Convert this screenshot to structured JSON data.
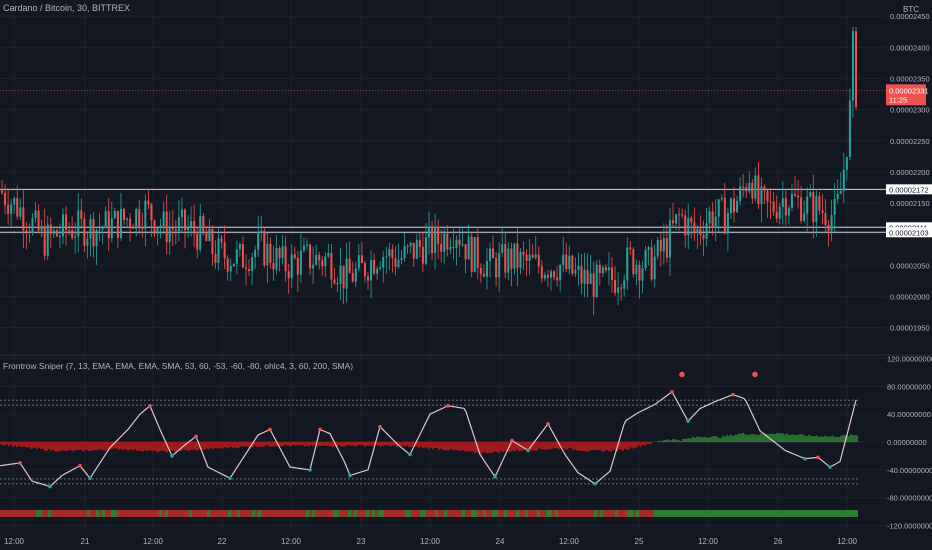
{
  "header": {
    "title": "Cardano / Bitcoin, 30, BITTREX",
    "currency": "BTC"
  },
  "indicator": {
    "title": "Frontrow Sniper (7, 13, EMA, EMA, EMA, SMA, 53, 60, -53, -60, -80, ohlc4, 3, 60, 200, SMA)"
  },
  "colors": {
    "background": "#131722",
    "up": "#26a69a",
    "down": "#ef5350",
    "grid": "#1e222d",
    "text": "#b2b5be",
    "oscillator_line": "#e0c5cf",
    "histogram_positive": "#2e7d32",
    "histogram_negative": "#b71c1c"
  },
  "chart_data": [
    {
      "type": "candlestick",
      "pane": "price",
      "y_ticks": [
        "0.00002450",
        "0.00002400",
        "0.00002350",
        "0.00002300",
        "0.00002250",
        "0.00002200",
        "0.00002150",
        "0.00002100",
        "0.00002050",
        "0.00002000",
        "0.00001950"
      ],
      "ylim": [
        1.93e-05,
        2.46e-05
      ],
      "current_price": {
        "value": "0.00002331",
        "countdown": "11:25"
      },
      "horizontal_lines": [
        {
          "label": "0.00002172",
          "value": 2.172e-05
        },
        {
          "label": "0.00002111",
          "value": 2.111e-05
        },
        {
          "label": "0.00002103",
          "value": 2.103e-05
        }
      ],
      "price_path": [
        [
          0,
          2.17e-05
        ],
        [
          20,
          2.14e-05
        ],
        [
          45,
          2.09e-05
        ],
        [
          70,
          2.11e-05
        ],
        [
          100,
          2.11e-05
        ],
        [
          120,
          2.12e-05
        ],
        [
          145,
          2.14e-05
        ],
        [
          165,
          2.11e-05
        ],
        [
          185,
          2.11e-05
        ],
        [
          200,
          2.1e-05
        ],
        [
          215,
          2.07e-05
        ],
        [
          240,
          2.06e-05
        ],
        [
          260,
          2.08e-05
        ],
        [
          285,
          2.05e-05
        ],
        [
          305,
          2.06e-05
        ],
        [
          330,
          2.06e-05
        ],
        [
          345,
          2.03e-05
        ],
        [
          360,
          2.04e-05
        ],
        [
          380,
          2.07e-05
        ],
        [
          400,
          2.06e-05
        ],
        [
          420,
          2.08e-05
        ],
        [
          440,
          2.09e-05
        ],
        [
          455,
          2.11e-05
        ],
        [
          470,
          2.07e-05
        ],
        [
          490,
          2.05e-05
        ],
        [
          510,
          2.06e-05
        ],
        [
          535,
          2.05e-05
        ],
        [
          560,
          2.05e-05
        ],
        [
          580,
          2.03e-05
        ],
        [
          600,
          2.02e-05
        ],
        [
          615,
          2.03e-05
        ],
        [
          630,
          2.06e-05
        ],
        [
          650,
          2.05e-05
        ],
        [
          665,
          2.08e-05
        ],
        [
          680,
          2.13e-05
        ],
        [
          695,
          2.1e-05
        ],
        [
          710,
          2.13e-05
        ],
        [
          725,
          2.13e-05
        ],
        [
          740,
          2.16e-05
        ],
        [
          750,
          2.2e-05
        ],
        [
          758,
          2.15e-05
        ],
        [
          770,
          2.14e-05
        ],
        [
          785,
          2.16e-05
        ],
        [
          800,
          2.15e-05
        ],
        [
          820,
          2.14e-05
        ],
        [
          835,
          2.13e-05
        ],
        [
          840,
          2.16e-05
        ],
        [
          845,
          2.22e-05
        ],
        [
          850,
          2.3e-05
        ],
        [
          853,
          2.4e-05
        ],
        [
          856,
          2.33e-05
        ]
      ]
    },
    {
      "type": "line",
      "pane": "oscillator",
      "y_ticks": [
        "120.00000000",
        "80.00000000",
        "40.00000000",
        "0.00000000",
        "-40.00000000",
        "-80.00000000",
        "-120.00000000"
      ],
      "ylim": [
        -122,
        122
      ],
      "levels": [
        60,
        53,
        -53,
        -60
      ],
      "histogram_path": [
        [
          0,
          -3
        ],
        [
          30,
          -9
        ],
        [
          60,
          -13
        ],
        [
          90,
          -12
        ],
        [
          120,
          -10
        ],
        [
          160,
          -14
        ],
        [
          200,
          -11
        ],
        [
          240,
          -7
        ],
        [
          280,
          -5
        ],
        [
          320,
          -6
        ],
        [
          360,
          -5
        ],
        [
          400,
          -6
        ],
        [
          440,
          -10
        ],
        [
          480,
          -16
        ],
        [
          520,
          -12
        ],
        [
          560,
          -9
        ],
        [
          590,
          -13
        ],
        [
          620,
          -12
        ],
        [
          650,
          -2
        ],
        [
          665,
          4
        ],
        [
          680,
          3
        ],
        [
          700,
          8
        ],
        [
          720,
          7
        ],
        [
          740,
          12
        ],
        [
          760,
          11
        ],
        [
          775,
          13
        ],
        [
          790,
          11
        ],
        [
          810,
          9
        ],
        [
          830,
          8
        ],
        [
          856,
          10
        ]
      ],
      "oscillator_path": [
        [
          0,
          -34
        ],
        [
          20,
          -30
        ],
        [
          32,
          -56
        ],
        [
          50,
          -64
        ],
        [
          62,
          -48
        ],
        [
          80,
          -34
        ],
        [
          90,
          -52
        ],
        [
          110,
          -8
        ],
        [
          128,
          18
        ],
        [
          140,
          40
        ],
        [
          150,
          52
        ],
        [
          160,
          18
        ],
        [
          172,
          -20
        ],
        [
          185,
          -4
        ],
        [
          196,
          8
        ],
        [
          208,
          -36
        ],
        [
          230,
          -52
        ],
        [
          258,
          10
        ],
        [
          270,
          18
        ],
        [
          290,
          -36
        ],
        [
          310,
          -40
        ],
        [
          320,
          18
        ],
        [
          330,
          12
        ],
        [
          345,
          -30
        ],
        [
          350,
          -48
        ],
        [
          368,
          -40
        ],
        [
          380,
          22
        ],
        [
          398,
          -4
        ],
        [
          410,
          -18
        ],
        [
          430,
          40
        ],
        [
          448,
          52
        ],
        [
          465,
          48
        ],
        [
          480,
          -18
        ],
        [
          495,
          -50
        ],
        [
          512,
          2
        ],
        [
          528,
          -12
        ],
        [
          548,
          26
        ],
        [
          565,
          -18
        ],
        [
          578,
          -44
        ],
        [
          595,
          -60
        ],
        [
          610,
          -42
        ],
        [
          625,
          30
        ],
        [
          638,
          42
        ],
        [
          655,
          54
        ],
        [
          672,
          72
        ],
        [
          688,
          30
        ],
        [
          700,
          48
        ],
        [
          715,
          58
        ],
        [
          733,
          68
        ],
        [
          745,
          62
        ],
        [
          760,
          16
        ],
        [
          785,
          -12
        ],
        [
          805,
          -24
        ],
        [
          818,
          -22
        ],
        [
          830,
          -36
        ],
        [
          840,
          -28
        ],
        [
          856,
          60
        ]
      ],
      "signal_markers": [
        {
          "x": 682,
          "value": 97
        },
        {
          "x": 755,
          "value": 97
        }
      ]
    }
  ],
  "x_axis": {
    "ticks": [
      {
        "x": 14,
        "label": "12:00"
      },
      {
        "x": 85,
        "label": "21"
      },
      {
        "x": 153,
        "label": "12:00"
      },
      {
        "x": 222,
        "label": "22"
      },
      {
        "x": 291,
        "label": "12:00"
      },
      {
        "x": 361,
        "label": "23"
      },
      {
        "x": 430,
        "label": "12:00"
      },
      {
        "x": 500,
        "label": "24"
      },
      {
        "x": 569,
        "label": "12:00"
      },
      {
        "x": 639,
        "label": "25"
      },
      {
        "x": 708,
        "label": "12:00"
      },
      {
        "x": 778,
        "label": "26"
      },
      {
        "x": 847,
        "label": "12:00"
      }
    ]
  }
}
